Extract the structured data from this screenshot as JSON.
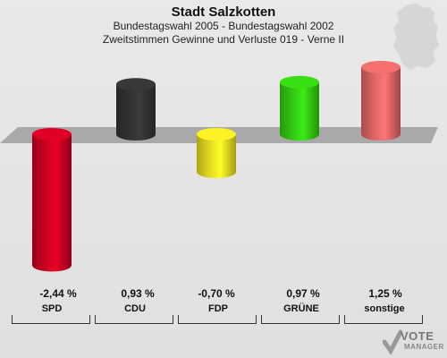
{
  "header": {
    "title": "Stadt Salzkotten",
    "subtitle1": "Bundestagswahl 2005 - Bundestagswahl 2002",
    "subtitle2": "Zweitstimmen Gewinne und Verluste 019 - Verne II"
  },
  "logo": {
    "line1": "VOTE",
    "line2": "MANAGER"
  },
  "colors": {
    "SPD": "#cc0022",
    "CDU": "#333333",
    "FDP": "#e6dc22",
    "GRUENE": "#33cc11",
    "sonstige": "#e06666"
  },
  "chart_data": {
    "type": "bar",
    "title": "Stadt Salzkotten",
    "categories": [
      "SPD",
      "CDU",
      "FDP",
      "GRÜNE",
      "sonstige"
    ],
    "values": [
      -2.44,
      0.93,
      -0.7,
      0.97,
      1.25
    ],
    "value_labels": [
      "-2,44 %",
      "0,93 %",
      "-0,70 %",
      "0,97 %",
      "1,25 %"
    ],
    "colors": [
      "#cc0022",
      "#333333",
      "#e6dc22",
      "#33cc11",
      "#e06666"
    ],
    "unit": "%"
  }
}
